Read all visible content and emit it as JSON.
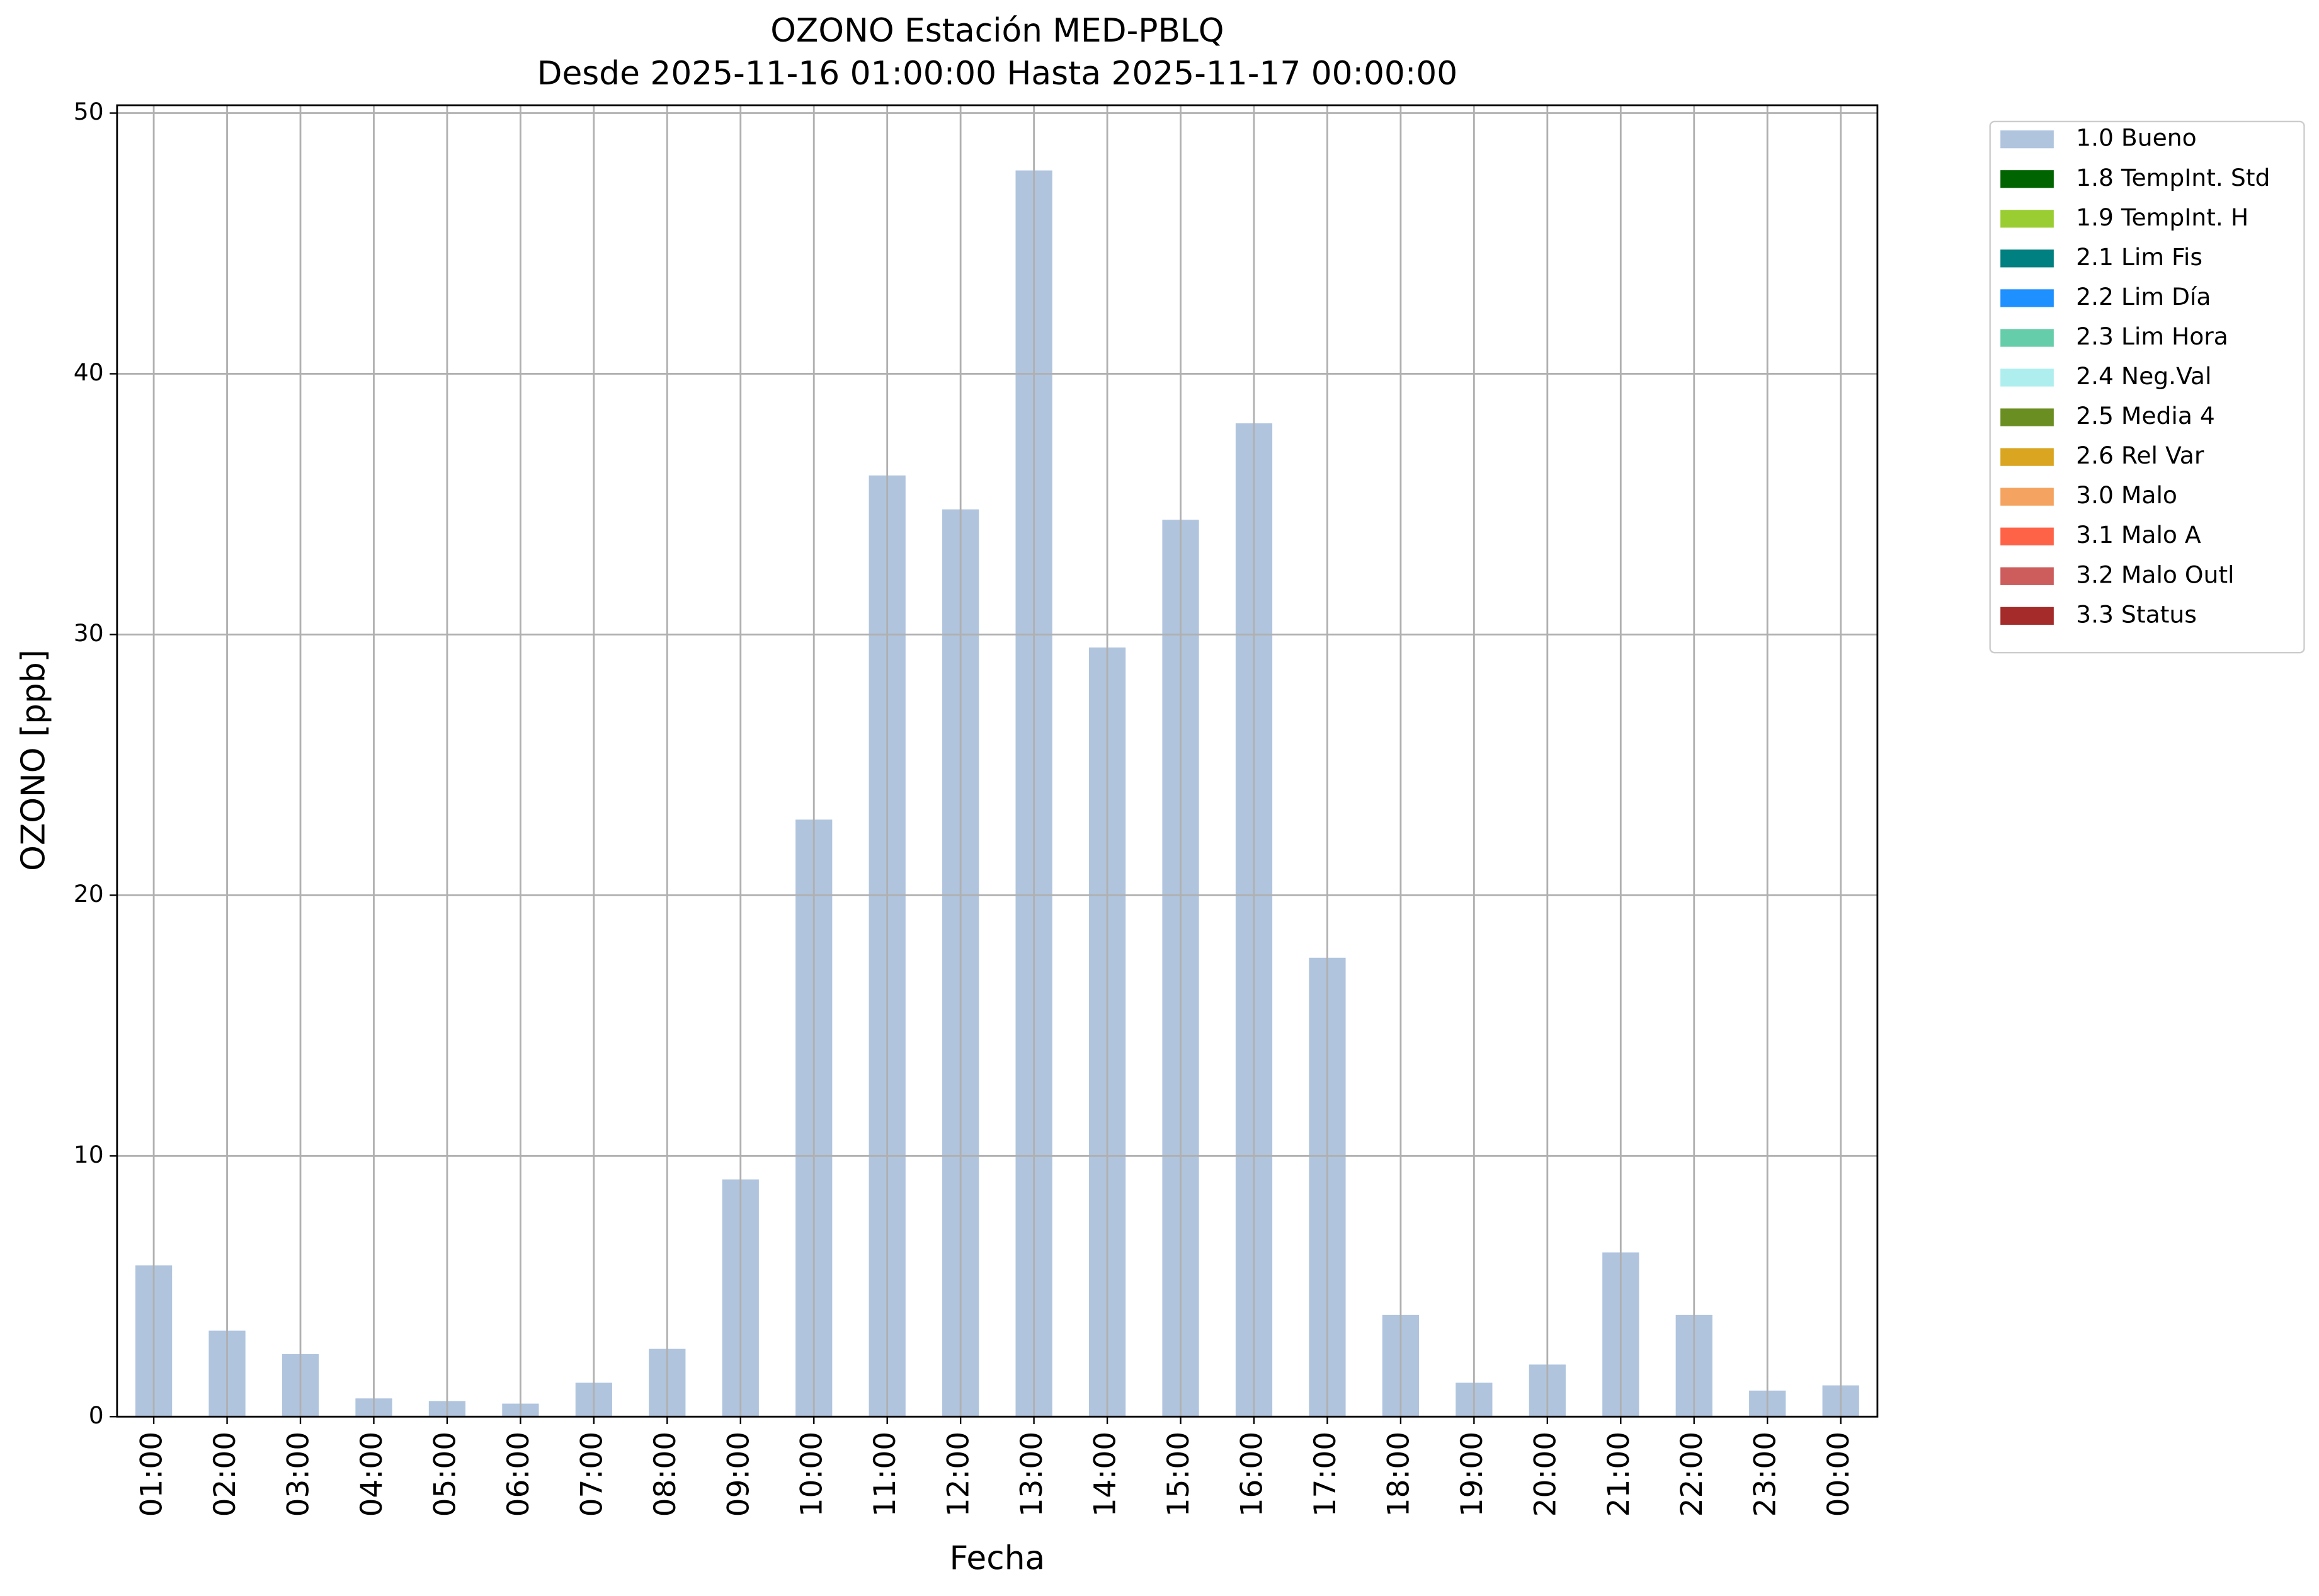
{
  "chart_data": {
    "type": "bar",
    "title": "OZONO Estación MED-PBLQ",
    "subtitle": "Desde 2025-11-16 01:00:00 Hasta 2025-11-17 00:00:00",
    "x_label": "Fecha",
    "y_label": "OZONO [ppb]",
    "categories": [
      "01:00",
      "02:00",
      "03:00",
      "04:00",
      "05:00",
      "06:00",
      "07:00",
      "08:00",
      "09:00",
      "10:00",
      "11:00",
      "12:00",
      "13:00",
      "14:00",
      "15:00",
      "16:00",
      "17:00",
      "18:00",
      "19:00",
      "20:00",
      "21:00",
      "22:00",
      "23:00",
      "00:00"
    ],
    "series": [
      {
        "name": "1.0 Bueno",
        "color": "#b0c4de",
        "values": [
          5.8,
          3.3,
          2.4,
          0.7,
          0.6,
          0.5,
          1.3,
          2.6,
          9.1,
          22.9,
          36.1,
          34.8,
          47.8,
          29.5,
          34.4,
          38.1,
          17.6,
          3.9,
          1.3,
          2.0,
          6.3,
          3.9,
          1.0,
          1.2
        ]
      },
      {
        "name": "1.8 TempInt. Std",
        "color": "#006400",
        "values": [
          null,
          null,
          null,
          null,
          null,
          null,
          null,
          null,
          null,
          null,
          null,
          null,
          null,
          null,
          null,
          null,
          null,
          null,
          null,
          null,
          null,
          null,
          null,
          null
        ]
      },
      {
        "name": "1.9 TempInt. H",
        "color": "#9acd32",
        "values": [
          null,
          null,
          null,
          null,
          null,
          null,
          null,
          null,
          null,
          null,
          null,
          null,
          null,
          null,
          null,
          null,
          null,
          null,
          null,
          null,
          null,
          null,
          null,
          null
        ]
      },
      {
        "name": "2.1 Lim Fis",
        "color": "#008080",
        "values": [
          null,
          null,
          null,
          null,
          null,
          null,
          null,
          null,
          null,
          null,
          null,
          null,
          null,
          null,
          null,
          null,
          null,
          null,
          null,
          null,
          null,
          null,
          null,
          null
        ]
      },
      {
        "name": "2.2 Lim Día",
        "color": "#1e90ff",
        "values": [
          null,
          null,
          null,
          null,
          null,
          null,
          null,
          null,
          null,
          null,
          null,
          null,
          null,
          null,
          null,
          null,
          null,
          null,
          null,
          null,
          null,
          null,
          null,
          null
        ]
      },
      {
        "name": "2.3 Lim Hora",
        "color": "#66cdaa",
        "values": [
          null,
          null,
          null,
          null,
          null,
          null,
          null,
          null,
          null,
          null,
          null,
          null,
          null,
          null,
          null,
          null,
          null,
          null,
          null,
          null,
          null,
          null,
          null,
          null
        ]
      },
      {
        "name": "2.4 Neg.Val",
        "color": "#afeeee",
        "values": [
          null,
          null,
          null,
          null,
          null,
          null,
          null,
          null,
          null,
          null,
          null,
          null,
          null,
          null,
          null,
          null,
          null,
          null,
          null,
          null,
          null,
          null,
          null,
          null
        ]
      },
      {
        "name": "2.5 Media 4",
        "color": "#6b8e23",
        "values": [
          null,
          null,
          null,
          null,
          null,
          null,
          null,
          null,
          null,
          null,
          null,
          null,
          null,
          null,
          null,
          null,
          null,
          null,
          null,
          null,
          null,
          null,
          null,
          null
        ]
      },
      {
        "name": "2.6 Rel Var",
        "color": "#daa520",
        "values": [
          null,
          null,
          null,
          null,
          null,
          null,
          null,
          null,
          null,
          null,
          null,
          null,
          null,
          null,
          null,
          null,
          null,
          null,
          null,
          null,
          null,
          null,
          null,
          null
        ]
      },
      {
        "name": "3.0 Malo",
        "color": "#f4a460",
        "values": [
          null,
          null,
          null,
          null,
          null,
          null,
          null,
          null,
          null,
          null,
          null,
          null,
          null,
          null,
          null,
          null,
          null,
          null,
          null,
          null,
          null,
          null,
          null,
          null
        ]
      },
      {
        "name": "3.1 Malo A",
        "color": "#ff6347",
        "values": [
          null,
          null,
          null,
          null,
          null,
          null,
          null,
          null,
          null,
          null,
          null,
          null,
          null,
          null,
          null,
          null,
          null,
          null,
          null,
          null,
          null,
          null,
          null,
          null
        ]
      },
      {
        "name": "3.2 Malo Outl",
        "color": "#cd5c5c",
        "values": [
          null,
          null,
          null,
          null,
          null,
          null,
          null,
          null,
          null,
          null,
          null,
          null,
          null,
          null,
          null,
          null,
          null,
          null,
          null,
          null,
          null,
          null,
          null,
          null
        ]
      },
      {
        "name": "3.3 Status",
        "color": "#a52a2a",
        "values": [
          null,
          null,
          null,
          null,
          null,
          null,
          null,
          null,
          null,
          null,
          null,
          null,
          null,
          null,
          null,
          null,
          null,
          null,
          null,
          null,
          null,
          null,
          null,
          null
        ]
      }
    ],
    "ylim": [
      0,
      50.3
    ],
    "yticks": [
      0,
      10,
      20,
      30,
      40,
      50
    ],
    "grid": true,
    "stacked": true,
    "legend_position": "outside-right"
  }
}
